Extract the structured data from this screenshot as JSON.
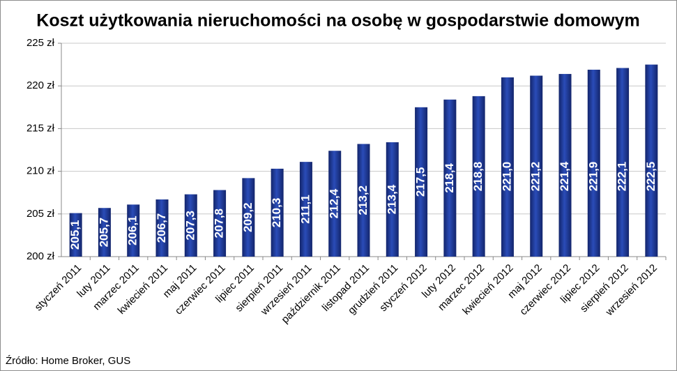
{
  "chart_data": {
    "type": "bar",
    "title": "Koszt użytkowania nieruchomości na osobę w gospodarstwie domowym",
    "categories": [
      "styczeń 2011",
      "luty 2011",
      "marzec 2011",
      "kwiecień 2011",
      "maj 2011",
      "czerwiec 2011",
      "lipiec 2011",
      "sierpień 2011",
      "wrzesień 2011",
      "październik 2011",
      "listopad 2011",
      "grudzień 2011",
      "styczeń 2012",
      "luty 2012",
      "marzec 2012",
      "kwiecień 2012",
      "maj 2012",
      "czerwiec 2012",
      "lipiec 2012",
      "sierpień 2012",
      "wrzesień 2012"
    ],
    "values": [
      205.1,
      205.7,
      206.1,
      206.7,
      207.3,
      207.8,
      209.2,
      210.3,
      211.1,
      212.4,
      213.2,
      213.4,
      217.5,
      218.4,
      218.8,
      221.0,
      221.2,
      221.4,
      221.9,
      222.1,
      222.5
    ],
    "value_labels": [
      "205,1",
      "205,7",
      "206,1",
      "206,7",
      "207,3",
      "207,8",
      "209,2",
      "210,3",
      "211,1",
      "212,4",
      "213,2",
      "213,4",
      "217,5",
      "218,4",
      "218,8",
      "221,0",
      "221,2",
      "221,4",
      "221,9",
      "222,1",
      "222,5"
    ],
    "color": "#1f3a96",
    "ylim": [
      200,
      225
    ],
    "yticks": [
      {
        "value": 200,
        "label": "200 zł"
      },
      {
        "value": 205,
        "label": "205 zł"
      },
      {
        "value": 210,
        "label": "210 zł"
      },
      {
        "value": 215,
        "label": "215 zł"
      },
      {
        "value": 220,
        "label": "220 zł"
      },
      {
        "value": 225,
        "label": "225 zł"
      }
    ],
    "grid": true,
    "source": "Źródło: Home Broker, GUS"
  }
}
